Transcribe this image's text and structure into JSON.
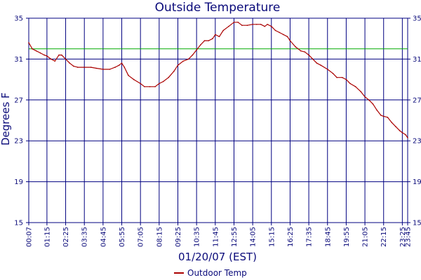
{
  "chart_data": {
    "type": "line",
    "title": "Outside Temperature",
    "xlabel": "01/20/07 (EST)",
    "ylabel": "Degrees F",
    "ylim": [
      15,
      35
    ],
    "yticks": [
      15,
      19,
      23,
      27,
      31,
      35
    ],
    "x_tick_labels": [
      "00:07",
      "01:15",
      "02:25",
      "03:35",
      "04:45",
      "05:55",
      "07:05",
      "08:15",
      "09:25",
      "10:35",
      "11:45",
      "12:55",
      "14:05",
      "15:15",
      "16:25",
      "17:35",
      "18:45",
      "19:55",
      "21:05",
      "22:15",
      "23:25",
      "23:45"
    ],
    "grid": true,
    "legend": "bottom-center",
    "reference_line": {
      "value": 32,
      "color": "#00aa00"
    },
    "colors": {
      "series": "#aa0000",
      "axis": "#000080",
      "grid": "#000080",
      "text": "#0a0a7a"
    },
    "series": [
      {
        "name": "Outdoor Temp",
        "points": [
          [
            "00:07",
            32.6
          ],
          [
            "00:20",
            32.0
          ],
          [
            "00:35",
            31.8
          ],
          [
            "00:50",
            31.6
          ],
          [
            "01:05",
            31.4
          ],
          [
            "01:15",
            31.3
          ],
          [
            "01:30",
            31.0
          ],
          [
            "01:45",
            30.8
          ],
          [
            "02:00",
            31.4
          ],
          [
            "02:10",
            31.4
          ],
          [
            "02:25",
            31.0
          ],
          [
            "02:40",
            30.6
          ],
          [
            "02:55",
            30.3
          ],
          [
            "03:10",
            30.2
          ],
          [
            "03:35",
            30.2
          ],
          [
            "04:00",
            30.2
          ],
          [
            "04:20",
            30.1
          ],
          [
            "04:45",
            30.0
          ],
          [
            "05:10",
            30.0
          ],
          [
            "05:30",
            30.2
          ],
          [
            "05:45",
            30.4
          ],
          [
            "05:55",
            30.6
          ],
          [
            "06:05",
            30.2
          ],
          [
            "06:20",
            29.4
          ],
          [
            "06:40",
            29.0
          ],
          [
            "07:05",
            28.6
          ],
          [
            "07:20",
            28.3
          ],
          [
            "07:40",
            28.3
          ],
          [
            "08:00",
            28.3
          ],
          [
            "08:15",
            28.6
          ],
          [
            "08:30",
            28.8
          ],
          [
            "08:50",
            29.2
          ],
          [
            "09:10",
            29.8
          ],
          [
            "09:25",
            30.4
          ],
          [
            "09:45",
            30.8
          ],
          [
            "10:05",
            31.0
          ],
          [
            "10:20",
            31.4
          ],
          [
            "10:35",
            31.9
          ],
          [
            "10:50",
            32.4
          ],
          [
            "11:05",
            32.8
          ],
          [
            "11:20",
            32.8
          ],
          [
            "11:35",
            33.0
          ],
          [
            "11:45",
            33.4
          ],
          [
            "12:00",
            33.2
          ],
          [
            "12:15",
            33.8
          ],
          [
            "12:35",
            34.2
          ],
          [
            "12:55",
            34.6
          ],
          [
            "13:10",
            34.6
          ],
          [
            "13:25",
            34.3
          ],
          [
            "13:45",
            34.3
          ],
          [
            "14:05",
            34.4
          ],
          [
            "14:20",
            34.4
          ],
          [
            "14:35",
            34.4
          ],
          [
            "14:50",
            34.2
          ],
          [
            "15:00",
            34.4
          ],
          [
            "15:15",
            34.2
          ],
          [
            "15:30",
            33.8
          ],
          [
            "15:45",
            33.6
          ],
          [
            "16:00",
            33.4
          ],
          [
            "16:15",
            33.2
          ],
          [
            "16:25",
            32.8
          ],
          [
            "16:45",
            32.2
          ],
          [
            "17:05",
            31.8
          ],
          [
            "17:20",
            31.7
          ],
          [
            "17:35",
            31.4
          ],
          [
            "17:50",
            31.0
          ],
          [
            "18:05",
            30.6
          ],
          [
            "18:20",
            30.4
          ],
          [
            "18:45",
            30.0
          ],
          [
            "19:05",
            29.6
          ],
          [
            "19:20",
            29.2
          ],
          [
            "19:40",
            29.2
          ],
          [
            "19:55",
            29.0
          ],
          [
            "20:10",
            28.6
          ],
          [
            "20:30",
            28.3
          ],
          [
            "20:50",
            27.8
          ],
          [
            "21:05",
            27.3
          ],
          [
            "21:20",
            27.0
          ],
          [
            "21:35",
            26.6
          ],
          [
            "21:50",
            26.0
          ],
          [
            "22:05",
            25.5
          ],
          [
            "22:15",
            25.4
          ],
          [
            "22:30",
            25.3
          ],
          [
            "22:45",
            24.8
          ],
          [
            "23:00",
            24.4
          ],
          [
            "23:15",
            24.0
          ],
          [
            "23:25",
            23.8
          ],
          [
            "23:37",
            23.6
          ],
          [
            "23:45",
            23.3
          ]
        ]
      }
    ]
  }
}
